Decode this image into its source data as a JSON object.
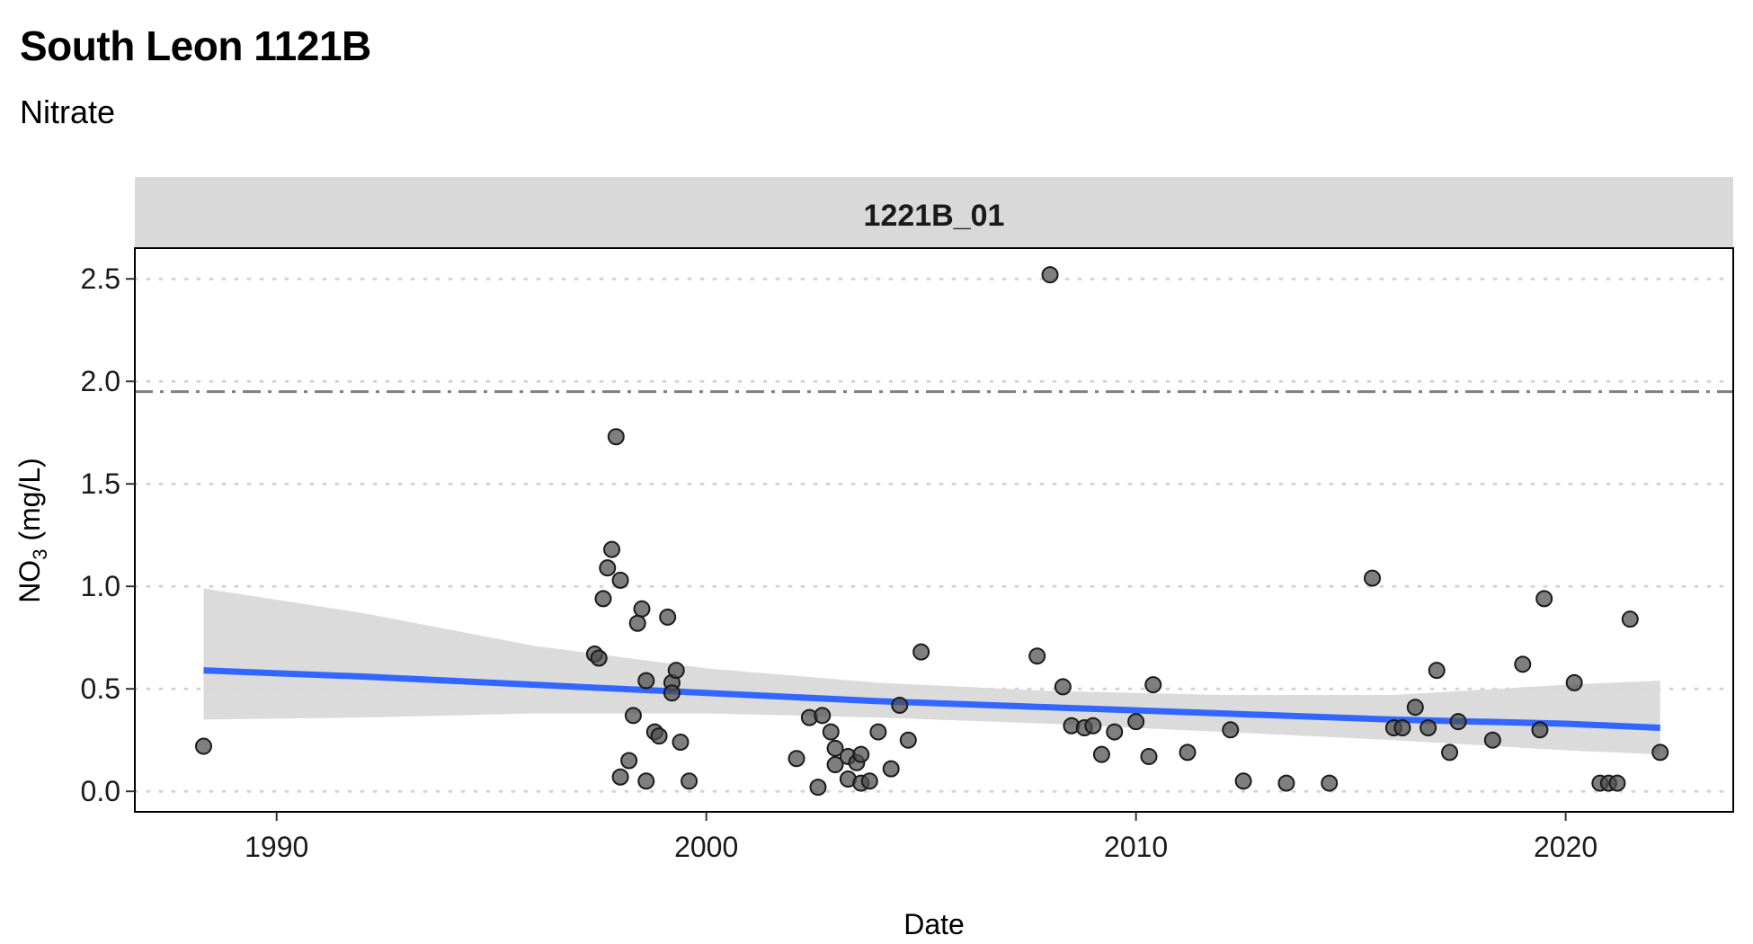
{
  "header": {
    "title": "South Leon 1121B",
    "subtitle": "Nitrate"
  },
  "chart_data": {
    "type": "scatter",
    "title": "South Leon 1121B",
    "subtitle": "Nitrate",
    "facet_label": "1221B_01",
    "xlabel": "Date",
    "ylabel_main": "NO",
    "ylabel_sub": "3",
    "ylabel_unit": " (mg/L)",
    "xlim": [
      1986.7,
      2023.9
    ],
    "ylim": [
      -0.1,
      2.65
    ],
    "x_ticks": [
      1990,
      2000,
      2010,
      2020
    ],
    "x_tick_labels": [
      "1990",
      "2000",
      "2010",
      "2020"
    ],
    "y_ticks": [
      0,
      0.5,
      1,
      1.5,
      2,
      2.5
    ],
    "y_tick_labels": [
      "0.0",
      "0.5",
      "1.0",
      "1.5",
      "2.0",
      "2.5"
    ],
    "grid": "horizontal dotted",
    "reference_line": {
      "y": 1.95,
      "style": "dash-dot",
      "color": "#7f7f7f"
    },
    "point_color": "#4d4d4d",
    "trend_color": "#3366ff",
    "ribbon_color": "#d9d9d9",
    "points": [
      {
        "x": 1988.3,
        "y": 0.22
      },
      {
        "x": 1997.4,
        "y": 0.67
      },
      {
        "x": 1997.5,
        "y": 0.65
      },
      {
        "x": 1997.6,
        "y": 0.94
      },
      {
        "x": 1997.7,
        "y": 1.09
      },
      {
        "x": 1997.8,
        "y": 1.18
      },
      {
        "x": 1997.9,
        "y": 1.73
      },
      {
        "x": 1998.0,
        "y": 1.03
      },
      {
        "x": 1998.0,
        "y": 0.07
      },
      {
        "x": 1998.2,
        "y": 0.15
      },
      {
        "x": 1998.3,
        "y": 0.37
      },
      {
        "x": 1998.4,
        "y": 0.82
      },
      {
        "x": 1998.5,
        "y": 0.89
      },
      {
        "x": 1998.6,
        "y": 0.54
      },
      {
        "x": 1998.6,
        "y": 0.05
      },
      {
        "x": 1998.8,
        "y": 0.29
      },
      {
        "x": 1998.9,
        "y": 0.27
      },
      {
        "x": 1999.1,
        "y": 0.85
      },
      {
        "x": 1999.2,
        "y": 0.53
      },
      {
        "x": 1999.2,
        "y": 0.48
      },
      {
        "x": 1999.3,
        "y": 0.59
      },
      {
        "x": 1999.4,
        "y": 0.24
      },
      {
        "x": 1999.6,
        "y": 0.05
      },
      {
        "x": 2002.1,
        "y": 0.16
      },
      {
        "x": 2002.4,
        "y": 0.36
      },
      {
        "x": 2002.6,
        "y": 0.02
      },
      {
        "x": 2002.7,
        "y": 0.37
      },
      {
        "x": 2002.9,
        "y": 0.29
      },
      {
        "x": 2003.0,
        "y": 0.21
      },
      {
        "x": 2003.0,
        "y": 0.13
      },
      {
        "x": 2003.3,
        "y": 0.17
      },
      {
        "x": 2003.3,
        "y": 0.06
      },
      {
        "x": 2003.5,
        "y": 0.14
      },
      {
        "x": 2003.6,
        "y": 0.18
      },
      {
        "x": 2003.6,
        "y": 0.04
      },
      {
        "x": 2003.8,
        "y": 0.05
      },
      {
        "x": 2004.0,
        "y": 0.29
      },
      {
        "x": 2004.3,
        "y": 0.11
      },
      {
        "x": 2004.5,
        "y": 0.42
      },
      {
        "x": 2004.7,
        "y": 0.25
      },
      {
        "x": 2005.0,
        "y": 0.68
      },
      {
        "x": 2007.7,
        "y": 0.66
      },
      {
        "x": 2008.0,
        "y": 2.52
      },
      {
        "x": 2008.3,
        "y": 0.51
      },
      {
        "x": 2008.5,
        "y": 0.32
      },
      {
        "x": 2008.8,
        "y": 0.31
      },
      {
        "x": 2009.0,
        "y": 0.32
      },
      {
        "x": 2009.2,
        "y": 0.18
      },
      {
        "x": 2009.5,
        "y": 0.29
      },
      {
        "x": 2010.0,
        "y": 0.34
      },
      {
        "x": 2010.3,
        "y": 0.17
      },
      {
        "x": 2010.4,
        "y": 0.52
      },
      {
        "x": 2011.2,
        "y": 0.19
      },
      {
        "x": 2012.2,
        "y": 0.3
      },
      {
        "x": 2012.5,
        "y": 0.05
      },
      {
        "x": 2013.5,
        "y": 0.04
      },
      {
        "x": 2014.5,
        "y": 0.04
      },
      {
        "x": 2015.5,
        "y": 1.04
      },
      {
        "x": 2016.0,
        "y": 0.31
      },
      {
        "x": 2016.2,
        "y": 0.31
      },
      {
        "x": 2016.5,
        "y": 0.41
      },
      {
        "x": 2016.8,
        "y": 0.31
      },
      {
        "x": 2017.0,
        "y": 0.59
      },
      {
        "x": 2017.3,
        "y": 0.19
      },
      {
        "x": 2017.5,
        "y": 0.34
      },
      {
        "x": 2018.3,
        "y": 0.25
      },
      {
        "x": 2019.0,
        "y": 0.62
      },
      {
        "x": 2019.4,
        "y": 0.3
      },
      {
        "x": 2019.5,
        "y": 0.94
      },
      {
        "x": 2020.2,
        "y": 0.53
      },
      {
        "x": 2020.8,
        "y": 0.04
      },
      {
        "x": 2021.0,
        "y": 0.04
      },
      {
        "x": 2021.2,
        "y": 0.04
      },
      {
        "x": 2021.5,
        "y": 0.84
      },
      {
        "x": 2022.2,
        "y": 0.19
      }
    ],
    "trend": [
      {
        "x": 1988.3,
        "y": 0.59,
        "lower": 0.35,
        "upper": 0.99
      },
      {
        "x": 1992.0,
        "y": 0.56,
        "lower": 0.36,
        "upper": 0.87
      },
      {
        "x": 1996.0,
        "y": 0.52,
        "lower": 0.38,
        "upper": 0.71
      },
      {
        "x": 2000.0,
        "y": 0.48,
        "lower": 0.38,
        "upper": 0.6
      },
      {
        "x": 2004.0,
        "y": 0.44,
        "lower": 0.36,
        "upper": 0.53
      },
      {
        "x": 2008.0,
        "y": 0.41,
        "lower": 0.33,
        "upper": 0.49
      },
      {
        "x": 2012.0,
        "y": 0.38,
        "lower": 0.29,
        "upper": 0.47
      },
      {
        "x": 2016.0,
        "y": 0.35,
        "lower": 0.25,
        "upper": 0.47
      },
      {
        "x": 2020.0,
        "y": 0.33,
        "lower": 0.2,
        "upper": 0.52
      },
      {
        "x": 2022.2,
        "y": 0.31,
        "lower": 0.18,
        "upper": 0.54
      }
    ]
  }
}
